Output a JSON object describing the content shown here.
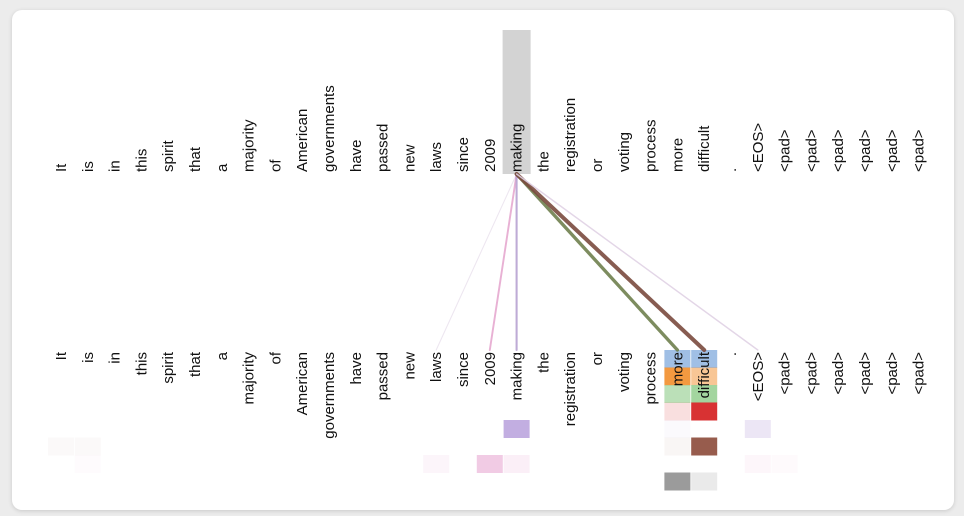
{
  "tokens": [
    "It",
    "is",
    "in",
    "this",
    "spirit",
    "that",
    "a",
    "majority",
    "of",
    "American",
    "governments",
    "have",
    "passed",
    "new",
    "laws",
    "since",
    "2009",
    "making",
    "the",
    "registration",
    "or",
    "voting",
    "process",
    "more",
    "difficult",
    ".",
    "<EOS>",
    "<pad>",
    "<pad>",
    "<pad>",
    "<pad>",
    "<pad>",
    "<pad>"
  ],
  "selected_token_index": 17,
  "selected_highlight_color": "#d3d3d3",
  "attention_lines": [
    {
      "to": 14,
      "color": "#ebe3ee",
      "weight": 0.08
    },
    {
      "to": 16,
      "color": "#e5a9cf",
      "weight": 0.35
    },
    {
      "to": 17,
      "color": "#b7a2d2",
      "weight": 0.4
    },
    {
      "to": 23,
      "color": "#6f7f4e",
      "weight": 0.8
    },
    {
      "to": 24,
      "color": "#7a4a3e",
      "weight": 1.0
    },
    {
      "to": 26,
      "color": "#e0d2e4",
      "weight": 0.2
    }
  ],
  "head_colors": [
    "#8fb4e0",
    "#f28e2b",
    "#9ed39a",
    "#d62728",
    "#b39ad9",
    "#8c4a3a",
    "#e8a9d2",
    "#8a8a8a"
  ],
  "head_cells": [
    {
      "token": 23,
      "head": 0,
      "opacity": 0.85
    },
    {
      "token": 24,
      "head": 0,
      "opacity": 0.85
    },
    {
      "token": 23,
      "head": 1,
      "opacity": 0.9
    },
    {
      "token": 24,
      "head": 1,
      "opacity": 0.5
    },
    {
      "token": 23,
      "head": 2,
      "opacity": 0.7
    },
    {
      "token": 24,
      "head": 2,
      "opacity": 0.95
    },
    {
      "token": 23,
      "head": 3,
      "opacity": 0.15
    },
    {
      "token": 24,
      "head": 3,
      "opacity": 0.95
    },
    {
      "token": 17,
      "head": 4,
      "opacity": 0.8
    },
    {
      "token": 26,
      "head": 4,
      "opacity": 0.25
    },
    {
      "token": 23,
      "head": 4,
      "opacity": 0.05
    },
    {
      "token": 24,
      "head": 5,
      "opacity": 0.9
    },
    {
      "token": 23,
      "head": 5,
      "opacity": 0.05
    },
    {
      "token": 0,
      "head": 5,
      "opacity": 0.03
    },
    {
      "token": 1,
      "head": 5,
      "opacity": 0.03
    },
    {
      "token": 1,
      "head": 6,
      "opacity": 0.05
    },
    {
      "token": 14,
      "head": 6,
      "opacity": 0.12
    },
    {
      "token": 16,
      "head": 6,
      "opacity": 0.6
    },
    {
      "token": 17,
      "head": 6,
      "opacity": 0.18
    },
    {
      "token": 26,
      "head": 6,
      "opacity": 0.1
    },
    {
      "token": 27,
      "head": 6,
      "opacity": 0.06
    },
    {
      "token": 23,
      "head": 7,
      "opacity": 0.85
    },
    {
      "token": 24,
      "head": 7,
      "opacity": 0.18
    }
  ]
}
